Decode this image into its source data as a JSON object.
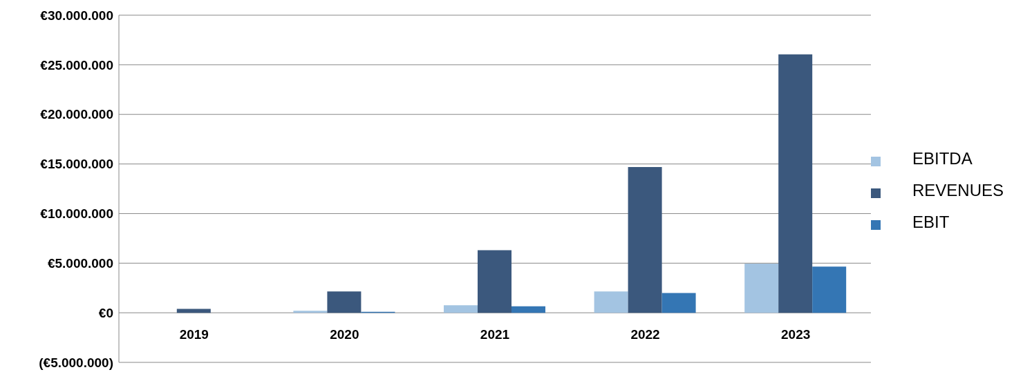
{
  "chart_data": {
    "type": "bar",
    "categories": [
      "2019",
      "2020",
      "2021",
      "2022",
      "2023"
    ],
    "series": [
      {
        "name": "EBITDA",
        "color": "#a3c4e2",
        "values": [
          0,
          200000,
          750000,
          2150000,
          4950000
        ]
      },
      {
        "name": "REVENUES",
        "color": "#3b587d",
        "values": [
          400000,
          2150000,
          6300000,
          14700000,
          26050000
        ]
      },
      {
        "name": "EBIT",
        "color": "#3476b4",
        "values": [
          0,
          100000,
          650000,
          2000000,
          4650000
        ]
      }
    ],
    "ylim": [
      -5000000,
      30000000
    ],
    "yticks": [
      {
        "value": -5000000,
        "label": "(€5.000.000)"
      },
      {
        "value": 0,
        "label": "€0"
      },
      {
        "value": 5000000,
        "label": "€5.000.000"
      },
      {
        "value": 10000000,
        "label": "€10.000.000"
      },
      {
        "value": 15000000,
        "label": "€15.000.000"
      },
      {
        "value": 20000000,
        "label": "€20.000.000"
      },
      {
        "value": 25000000,
        "label": "€25.000.000"
      },
      {
        "value": 30000000,
        "label": "€30.000.000"
      }
    ],
    "grid": "y",
    "legend": "right"
  }
}
